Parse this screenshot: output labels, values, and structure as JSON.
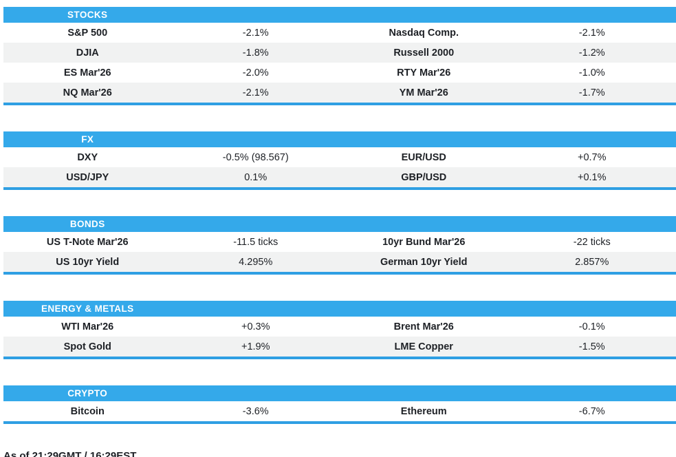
{
  "colors": {
    "header_bar": "#34a9ea",
    "divider_line": "#2f9fe3",
    "row_alternate": "#f1f2f2",
    "header_text": "#ffffff",
    "body_text": "#1d2025"
  },
  "sections": [
    {
      "title": "STOCKS",
      "rows": [
        {
          "l1": "S&P 500",
          "v1": "-2.1%",
          "l2": "Nasdaq Comp.",
          "v2": "-2.1%"
        },
        {
          "l1": "DJIA",
          "v1": "-1.8%",
          "l2": "Russell 2000",
          "v2": "-1.2%"
        },
        {
          "l1": "ES Mar'26",
          "v1": "-2.0%",
          "l2": "RTY Mar'26",
          "v2": "-1.0%"
        },
        {
          "l1": "NQ Mar'26",
          "v1": "-2.1%",
          "l2": "YM Mar'26",
          "v2": "-1.7%"
        }
      ]
    },
    {
      "title": "FX",
      "rows": [
        {
          "l1": "DXY",
          "v1": "-0.5% (98.567)",
          "l2": "EUR/USD",
          "v2": "+0.7%"
        },
        {
          "l1": "USD/JPY",
          "v1": "0.1%",
          "l2": "GBP/USD",
          "v2": "+0.1%"
        }
      ]
    },
    {
      "title": "BONDS",
      "rows": [
        {
          "l1": "US T-Note Mar'26",
          "v1": "-11.5 ticks",
          "l2": "10yr Bund Mar'26",
          "v2": "-22 ticks"
        },
        {
          "l1": "US 10yr Yield",
          "v1": "4.295%",
          "l2": "German 10yr Yield",
          "v2": "2.857%"
        }
      ]
    },
    {
      "title": "ENERGY & METALS",
      "rows": [
        {
          "l1": "WTI Mar'26",
          "v1": "+0.3%",
          "l2": "Brent Mar'26",
          "v2": "-0.1%"
        },
        {
          "l1": "Spot Gold",
          "v1": "+1.9%",
          "l2": "LME Copper",
          "v2": "-1.5%"
        }
      ]
    },
    {
      "title": "CRYPTO",
      "rows": [
        {
          "l1": "Bitcoin",
          "v1": "-3.6%",
          "l2": "Ethereum",
          "v2": "-6.7%"
        }
      ]
    }
  ],
  "footer": {
    "as_of": "As of 21:29GMT / 16:29EST"
  }
}
